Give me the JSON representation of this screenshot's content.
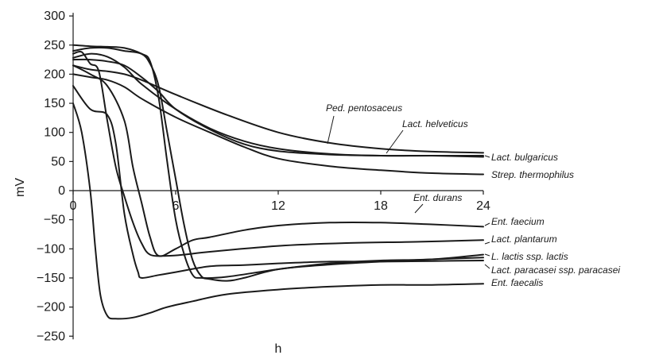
{
  "chart_data": {
    "type": "line",
    "title": "",
    "xlabel": "h",
    "ylabel": "mV",
    "xlim": [
      0,
      24
    ],
    "ylim": [
      -250,
      300
    ],
    "x_ticks": [
      0,
      6,
      12,
      18,
      24
    ],
    "y_ticks": [
      300,
      250,
      200,
      150,
      100,
      50,
      0,
      -50,
      -100,
      -150,
      -200,
      -250
    ],
    "grid": false,
    "series": [
      {
        "name": "Ped. pentosaceus",
        "points": [
          [
            0,
            215
          ],
          [
            1,
            208
          ],
          [
            2,
            205
          ],
          [
            3,
            200
          ],
          [
            4,
            190
          ],
          [
            6,
            165
          ],
          [
            9,
            130
          ],
          [
            12,
            100
          ],
          [
            15,
            82
          ],
          [
            18,
            72
          ],
          [
            21,
            67
          ],
          [
            24,
            65
          ]
        ]
      },
      {
        "name": "Lact. helveticus",
        "points": [
          [
            0,
            225
          ],
          [
            1,
            225
          ],
          [
            2,
            222
          ],
          [
            3,
            215
          ],
          [
            4,
            195
          ],
          [
            5,
            170
          ],
          [
            6,
            140
          ],
          [
            8,
            105
          ],
          [
            10,
            80
          ],
          [
            12,
            68
          ],
          [
            15,
            62
          ],
          [
            18,
            60
          ],
          [
            21,
            60
          ],
          [
            24,
            60
          ]
        ]
      },
      {
        "name": "Lact. bulgaricus",
        "points": [
          [
            0,
            228
          ],
          [
            1,
            235
          ],
          [
            2,
            230
          ],
          [
            3,
            212
          ],
          [
            4,
            183
          ],
          [
            6,
            140
          ],
          [
            8,
            107
          ],
          [
            10,
            85
          ],
          [
            12,
            72
          ],
          [
            15,
            63
          ],
          [
            18,
            60
          ],
          [
            21,
            60
          ],
          [
            24,
            58
          ]
        ]
      },
      {
        "name": "Strep. thermophilus",
        "points": [
          [
            0,
            200
          ],
          [
            1,
            195
          ],
          [
            2,
            190
          ],
          [
            3,
            178
          ],
          [
            4,
            158
          ],
          [
            6,
            126
          ],
          [
            8,
            100
          ],
          [
            10,
            75
          ],
          [
            12,
            55
          ],
          [
            15,
            42
          ],
          [
            18,
            35
          ],
          [
            21,
            30
          ],
          [
            24,
            28
          ]
        ]
      },
      {
        "name": "Ent. durans",
        "points": [
          [
            0,
            235
          ],
          [
            0.5,
            238
          ],
          [
            1,
            218
          ],
          [
            1.5,
            205
          ],
          [
            2,
            120
          ],
          [
            2.5,
            40
          ],
          [
            3,
            -10
          ],
          [
            3.5,
            -55
          ],
          [
            4,
            -90
          ],
          [
            4.5,
            -110
          ],
          [
            5.5,
            -112
          ],
          [
            6.5,
            -110
          ],
          [
            8,
            -105
          ],
          [
            12,
            -95
          ],
          [
            16,
            -90
          ],
          [
            20,
            -88
          ],
          [
            24,
            -85
          ]
        ]
      },
      {
        "name": "Ent. faecium",
        "points": [
          [
            0,
            215
          ],
          [
            1,
            200
          ],
          [
            2,
            180
          ],
          [
            3,
            120
          ],
          [
            3.5,
            40
          ],
          [
            4,
            -20
          ],
          [
            4.5,
            -80
          ],
          [
            5,
            -112
          ],
          [
            6,
            -100
          ],
          [
            7,
            -85
          ],
          [
            8,
            -80
          ],
          [
            10,
            -68
          ],
          [
            12,
            -60
          ],
          [
            15,
            -55
          ],
          [
            18,
            -55
          ],
          [
            21,
            -58
          ],
          [
            24,
            -62
          ]
        ]
      },
      {
        "name": "Lact. plantarum",
        "points": [
          [
            0,
            240
          ],
          [
            1,
            245
          ],
          [
            2,
            245
          ],
          [
            3,
            240
          ],
          [
            4,
            235
          ],
          [
            4.5,
            218
          ],
          [
            5,
            180
          ],
          [
            5.5,
            100
          ],
          [
            6,
            20
          ],
          [
            6.5,
            -60
          ],
          [
            7,
            -120
          ],
          [
            7.5,
            -147
          ],
          [
            8,
            -152
          ],
          [
            9,
            -155
          ],
          [
            10,
            -150
          ],
          [
            12,
            -135
          ],
          [
            15,
            -127
          ],
          [
            18,
            -122
          ],
          [
            21,
            -118
          ],
          [
            24,
            -115
          ]
        ]
      },
      {
        "name": "L. lactis ssp. lactis",
        "points": [
          [
            0,
            250
          ],
          [
            1,
            248
          ],
          [
            2,
            247
          ],
          [
            3,
            245
          ],
          [
            4,
            235
          ],
          [
            4.5,
            222
          ],
          [
            5,
            160
          ],
          [
            5.5,
            50
          ],
          [
            6,
            -50
          ],
          [
            6.5,
            -110
          ],
          [
            7,
            -145
          ],
          [
            7.5,
            -150
          ],
          [
            9,
            -148
          ],
          [
            12,
            -135
          ],
          [
            15,
            -125
          ],
          [
            18,
            -120
          ],
          [
            21,
            -118
          ],
          [
            24,
            -110
          ]
        ]
      },
      {
        "name": "Lact. paracasei ssp. paracasei",
        "points": [
          [
            0,
            180
          ],
          [
            1,
            140
          ],
          [
            2,
            130
          ],
          [
            2.5,
            80
          ],
          [
            3,
            -40
          ],
          [
            3.5,
            -110
          ],
          [
            3.8,
            -140
          ],
          [
            4,
            -150
          ],
          [
            5,
            -145
          ],
          [
            6,
            -140
          ],
          [
            8,
            -130
          ],
          [
            10,
            -128
          ],
          [
            12,
            -125
          ],
          [
            15,
            -122
          ],
          [
            18,
            -122
          ],
          [
            21,
            -121
          ],
          [
            24,
            -120
          ]
        ]
      },
      {
        "name": "Ent. faecalis",
        "points": [
          [
            0,
            150
          ],
          [
            0.5,
            100
          ],
          [
            1,
            0
          ],
          [
            1.3,
            -100
          ],
          [
            1.6,
            -180
          ],
          [
            2,
            -215
          ],
          [
            2.5,
            -220
          ],
          [
            3.5,
            -218
          ],
          [
            4.5,
            -210
          ],
          [
            5.5,
            -200
          ],
          [
            7,
            -190
          ],
          [
            9,
            -178
          ],
          [
            12,
            -170
          ],
          [
            15,
            -165
          ],
          [
            18,
            -162
          ],
          [
            21,
            -162
          ],
          [
            24,
            -160
          ]
        ]
      }
    ]
  }
}
